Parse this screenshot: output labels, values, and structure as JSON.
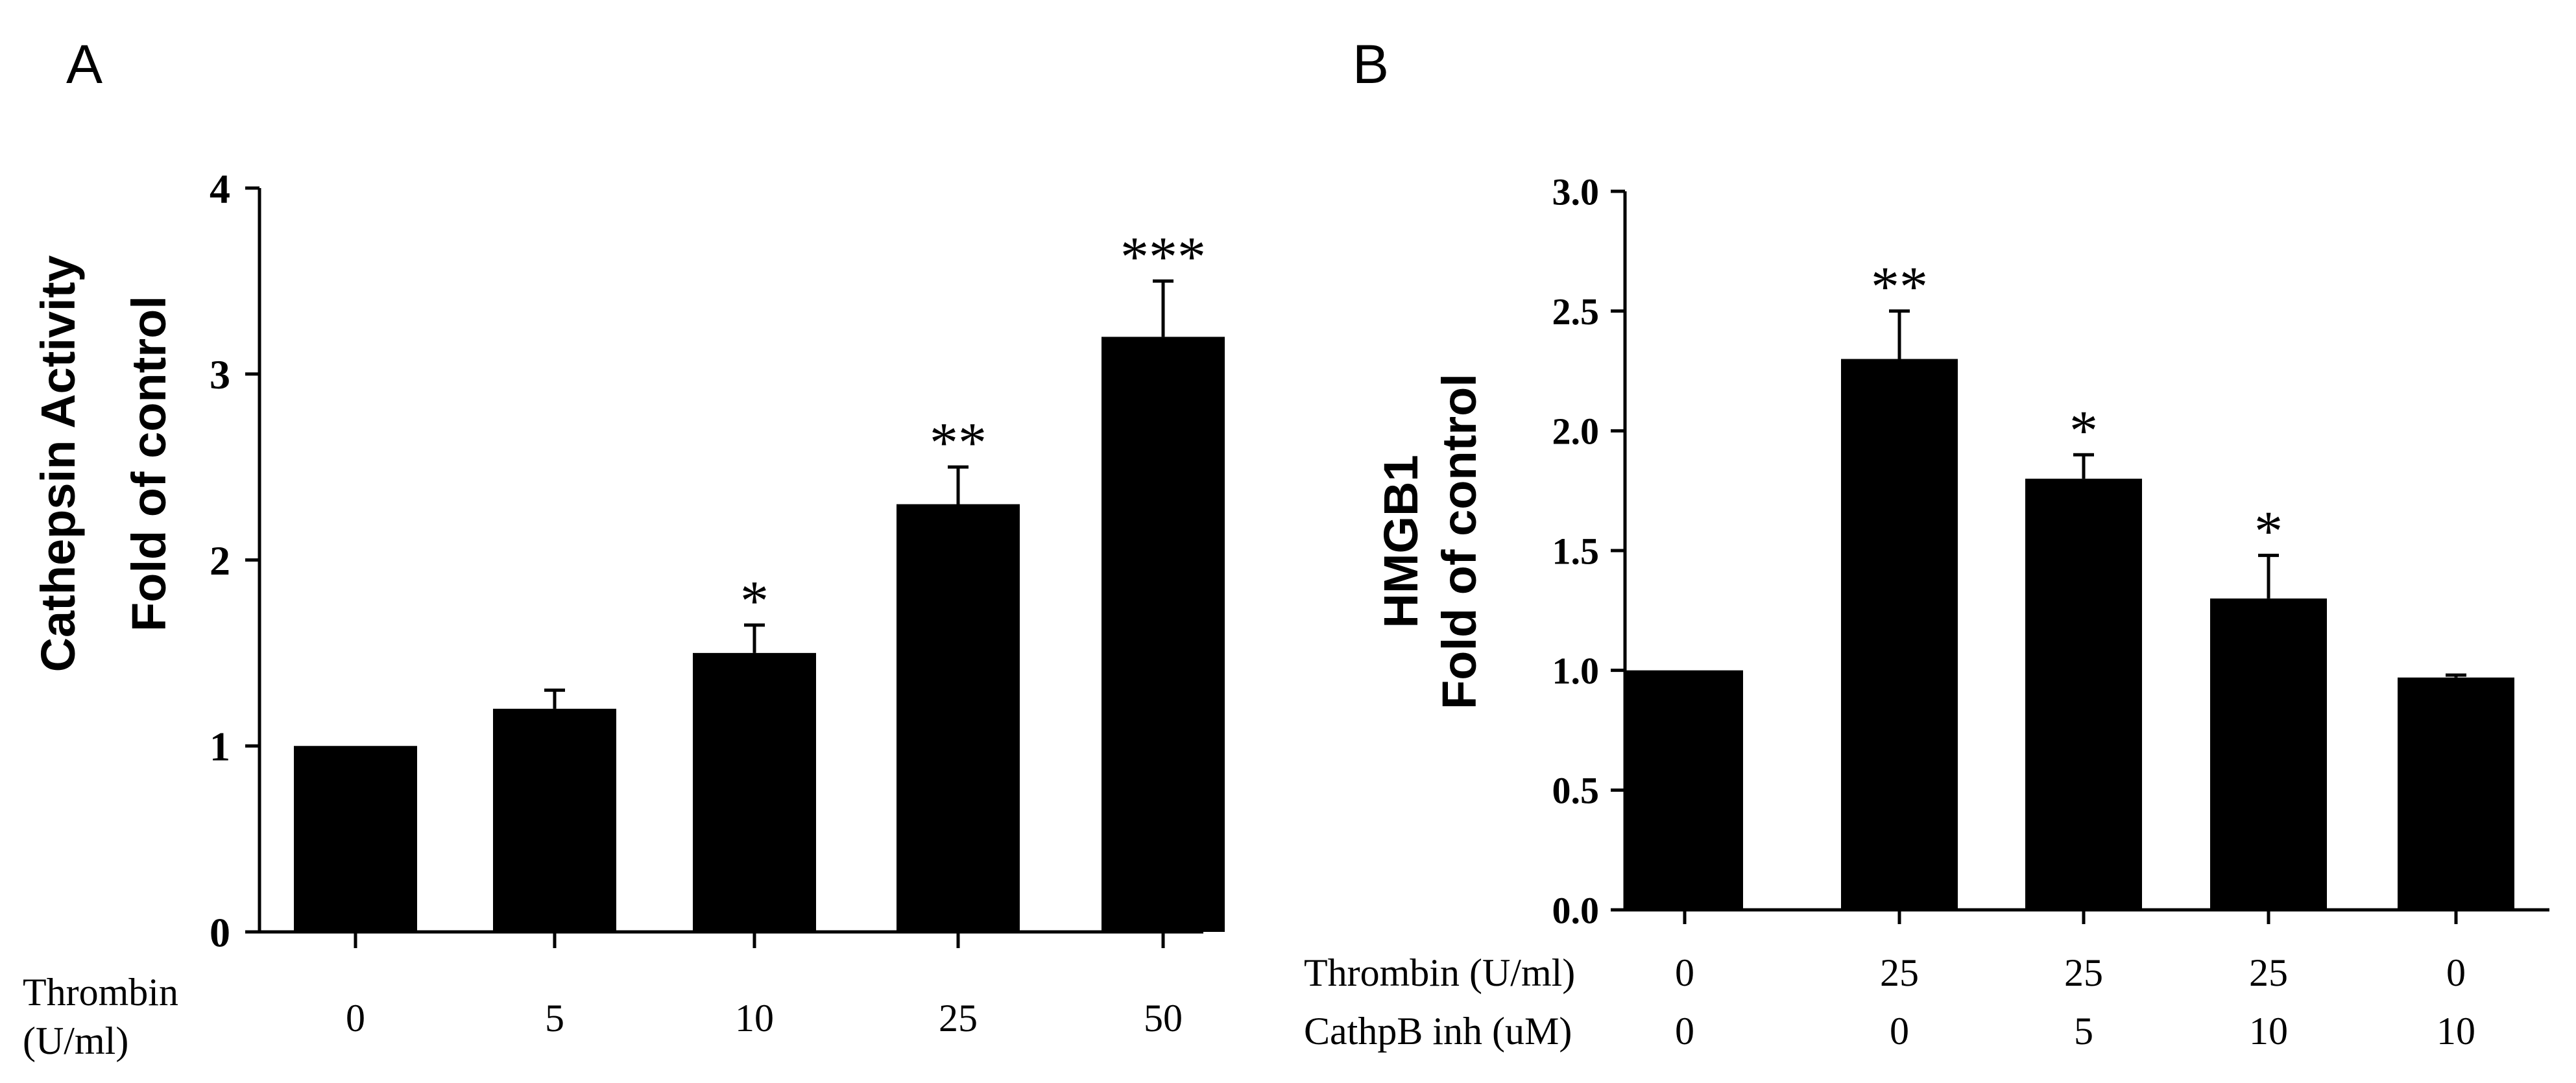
{
  "chart_data": [
    {
      "panel": "A",
      "type": "bar",
      "ylabel_line1": "Cathepsin Activity",
      "ylabel_line2": "Fold  of control",
      "ylim": [
        0,
        4
      ],
      "yticks": [
        "0",
        "1",
        "2",
        "3",
        "4"
      ],
      "xrows": [
        {
          "label_lines": [
            "Thrombin",
            "(U/ml)"
          ],
          "values": [
            "0",
            "5",
            "10",
            "25",
            "50"
          ]
        }
      ],
      "values": [
        1.0,
        1.2,
        1.5,
        2.3,
        3.2
      ],
      "errors": [
        0.0,
        0.1,
        0.15,
        0.2,
        0.3
      ],
      "significance": [
        "",
        "",
        "*",
        "**",
        "***"
      ]
    },
    {
      "panel": "B",
      "type": "bar",
      "ylabel_line1": "HMGB1",
      "ylabel_line2": "Fold of control",
      "ylim": [
        0,
        3
      ],
      "yticks": [
        "0.0",
        "0.5",
        "1.0",
        "1.5",
        "2.0",
        "2.5",
        "3.0"
      ],
      "xrows": [
        {
          "label_lines": [
            "Thrombin (U/ml)"
          ],
          "values": [
            "0",
            "25",
            "25",
            "25",
            "0"
          ]
        },
        {
          "label_lines": [
            "CathpB inh (uM)"
          ],
          "values": [
            "0",
            "0",
            "5",
            "10",
            "10"
          ]
        }
      ],
      "values": [
        1.0,
        2.3,
        1.8,
        1.3,
        0.97
      ],
      "errors": [
        0.0,
        0.2,
        0.1,
        0.18,
        0.01
      ],
      "significance": [
        "",
        "**",
        "*",
        "*",
        ""
      ]
    }
  ]
}
